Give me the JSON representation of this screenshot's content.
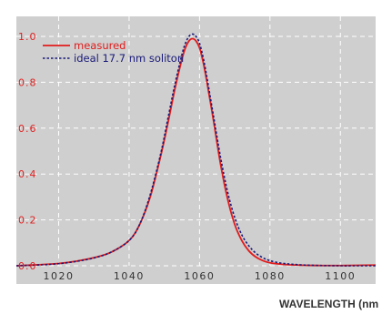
{
  "chart_data": {
    "type": "line",
    "title": "",
    "xlabel": "WAVELENGTH (nm",
    "ylabel": "",
    "xlim": [
      1008,
      1110
    ],
    "ylim": [
      0,
      1.0
    ],
    "x_ticks": [
      1020,
      1040,
      1060,
      1080,
      1100
    ],
    "x_tick_labels": [
      "1020",
      "1040",
      "1060",
      "1080",
      "1100"
    ],
    "y_ticks": [
      0.0,
      0.2,
      0.4,
      0.6,
      0.8,
      1.0
    ],
    "y_tick_labels": [
      "0.0",
      "0.2",
      "0.4",
      "0.6",
      "0.8",
      "1.0"
    ],
    "grid": true,
    "legend_position": "top-left",
    "background_color": "#cfcfcf",
    "series": [
      {
        "name": "measured",
        "color": "#e21b1b",
        "style": "solid",
        "x": [
          1008,
          1015,
          1020,
          1025,
          1030,
          1035,
          1040,
          1043,
          1046,
          1049,
          1051,
          1053,
          1055,
          1056,
          1057,
          1058,
          1059,
          1060,
          1061,
          1062,
          1064,
          1066,
          1068,
          1070,
          1072,
          1074,
          1076,
          1078,
          1080,
          1083,
          1086,
          1090,
          1095,
          1100,
          1105,
          1110
        ],
        "y": [
          0.0,
          0.005,
          0.01,
          0.02,
          0.035,
          0.06,
          0.11,
          0.18,
          0.3,
          0.48,
          0.62,
          0.77,
          0.9,
          0.95,
          0.98,
          0.99,
          0.98,
          0.95,
          0.89,
          0.81,
          0.63,
          0.44,
          0.29,
          0.18,
          0.11,
          0.065,
          0.038,
          0.022,
          0.013,
          0.007,
          0.004,
          0.002,
          0.001,
          0.001,
          0.002,
          0.003
        ]
      },
      {
        "name": "ideal 17.7 nm soliton",
        "color": "#1a1a7a",
        "style": "dotted",
        "x": [
          1008,
          1015,
          1020,
          1025,
          1030,
          1035,
          1040,
          1043,
          1046,
          1049,
          1051,
          1053,
          1055,
          1056,
          1057,
          1058,
          1059,
          1060,
          1061,
          1062,
          1064,
          1066,
          1068,
          1070,
          1072,
          1074,
          1076,
          1078,
          1080,
          1083,
          1086,
          1090,
          1095,
          1100,
          1105,
          1110
        ],
        "y": [
          0.0,
          0.004,
          0.009,
          0.019,
          0.034,
          0.06,
          0.11,
          0.18,
          0.31,
          0.49,
          0.64,
          0.79,
          0.92,
          0.97,
          1.0,
          1.01,
          1.0,
          0.97,
          0.91,
          0.83,
          0.65,
          0.47,
          0.32,
          0.21,
          0.135,
          0.087,
          0.055,
          0.035,
          0.022,
          0.012,
          0.007,
          0.003,
          0.001,
          0.0,
          0.0,
          0.0
        ]
      }
    ]
  }
}
